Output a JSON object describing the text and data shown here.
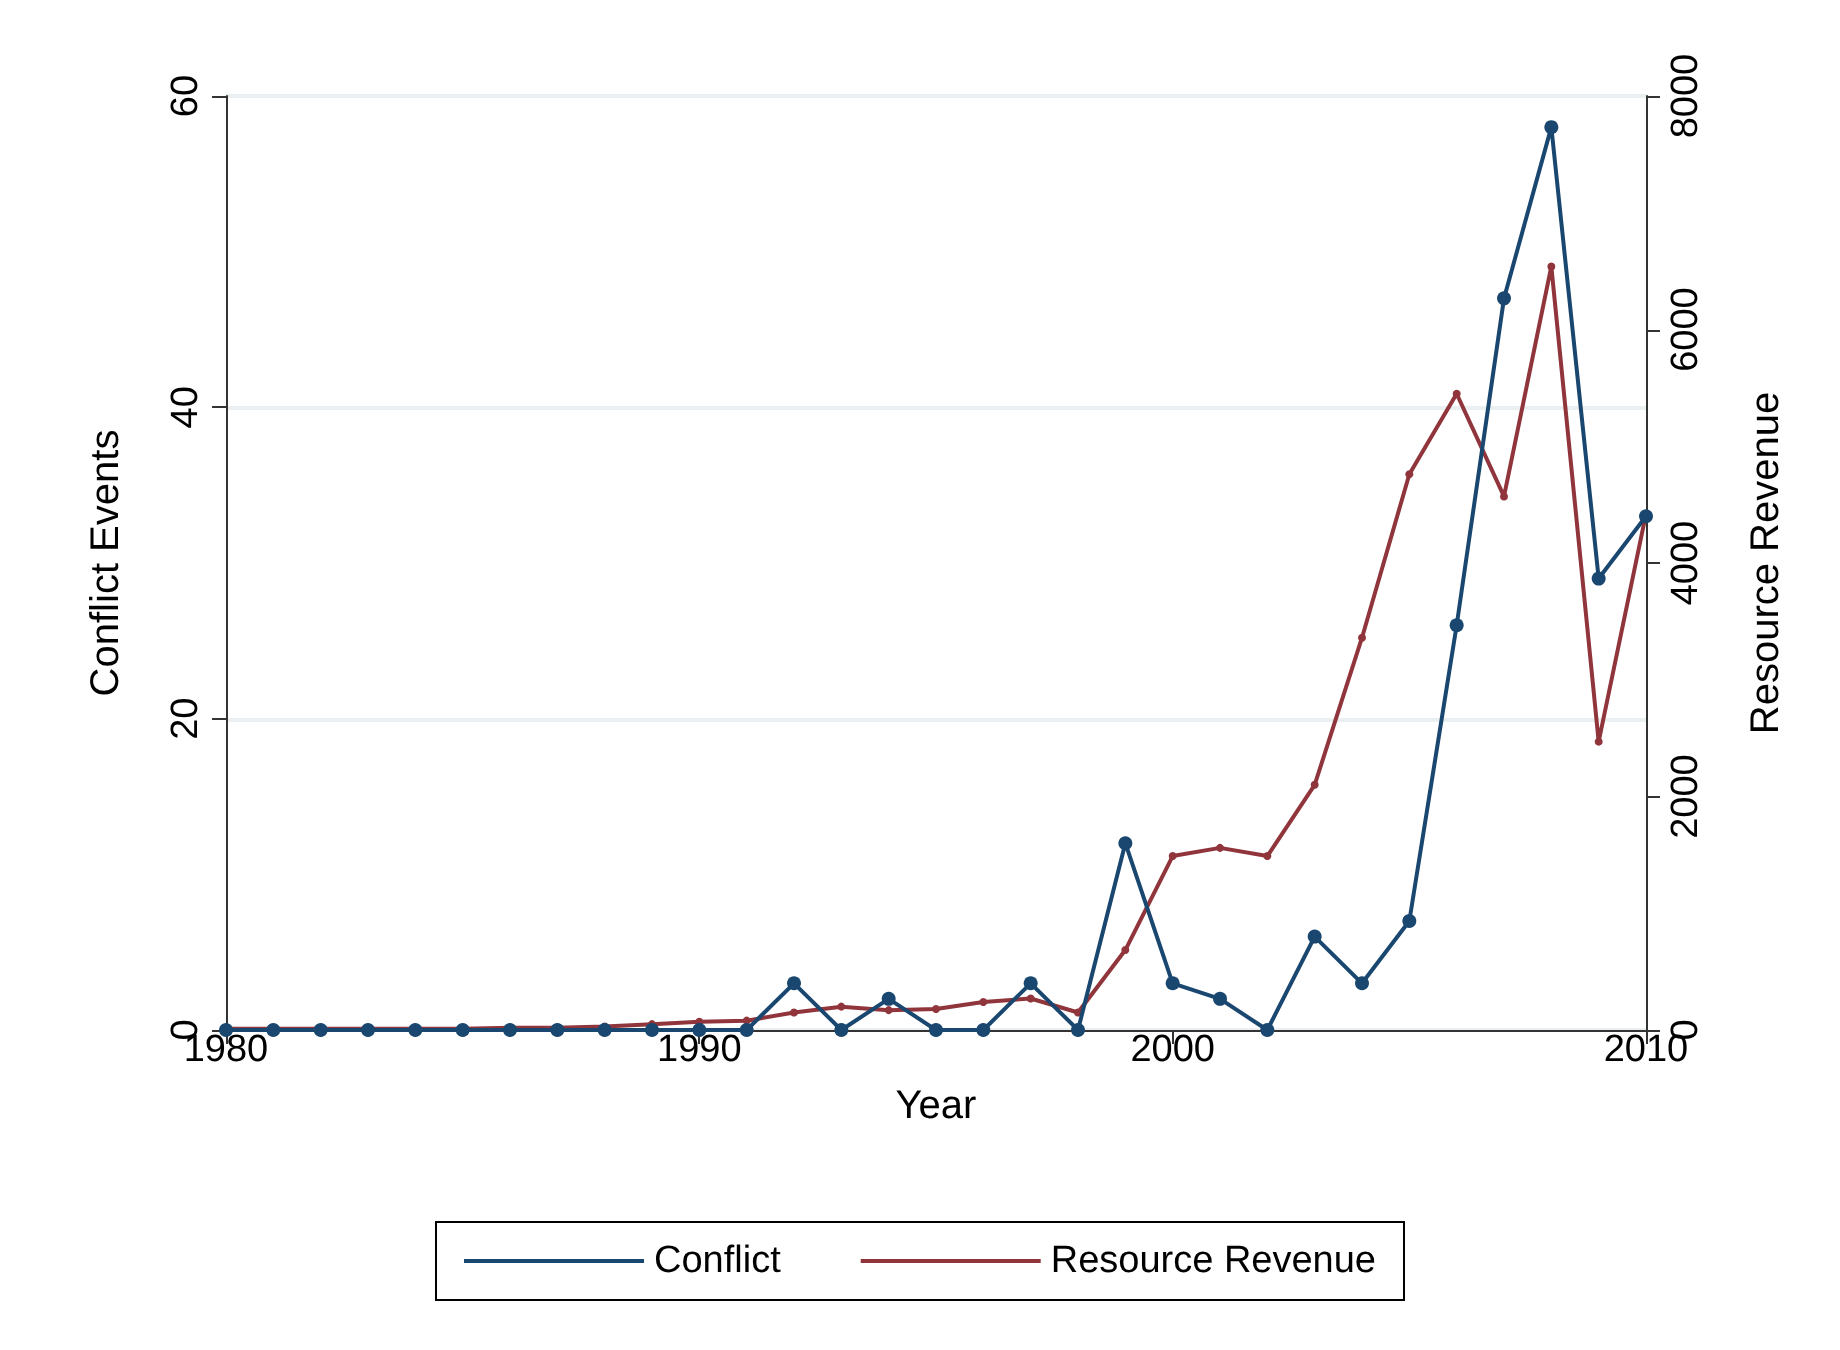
{
  "chart_data": {
    "type": "line",
    "xlabel": "Year",
    "ylabel": "Conflict Events",
    "y2label": "Resource Revenue",
    "x": [
      1980,
      1981,
      1982,
      1983,
      1984,
      1985,
      1986,
      1987,
      1988,
      1989,
      1990,
      1991,
      1992,
      1993,
      1994,
      1995,
      1996,
      1997,
      1998,
      1999,
      2000,
      2001,
      2002,
      2003,
      2004,
      2005,
      2006,
      2007,
      2008,
      2009,
      2010
    ],
    "series": [
      {
        "name": "Conflict",
        "color": "#1a476f",
        "values": [
          0,
          0,
          0,
          0,
          0,
          0,
          0,
          0,
          0,
          0,
          0,
          0,
          3,
          0,
          2,
          0,
          0,
          3,
          0,
          12,
          3,
          2,
          0,
          6,
          3,
          7,
          26,
          47,
          58,
          29,
          33
        ]
      },
      {
        "name": "Resource Revenue",
        "color": "#90353b",
        "axis": "y2",
        "values": [
          10,
          10,
          10,
          10,
          10,
          10,
          20,
          20,
          30,
          50,
          70,
          80,
          150,
          200,
          170,
          180,
          240,
          270,
          150,
          685,
          1490,
          1560,
          1490,
          2100,
          3360,
          4760,
          5450,
          4570,
          6540,
          2470,
          4420
        ]
      }
    ],
    "xlim": [
      1980,
      2010
    ],
    "xticks": [
      1980,
      1990,
      2000,
      2010
    ],
    "ylim": [
      0,
      60
    ],
    "yticks": [
      0,
      20,
      40,
      60
    ],
    "y2lim": [
      0,
      8000
    ],
    "y2ticks": [
      0,
      2000,
      4000,
      6000,
      8000
    ],
    "grid": "y",
    "legend": "bottom",
    "marker": "circle",
    "line_style": "solid"
  }
}
